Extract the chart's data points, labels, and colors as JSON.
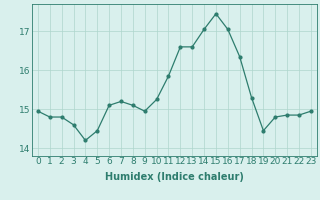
{
  "xlabel": "Humidex (Indice chaleur)",
  "ylabel": "",
  "x": [
    0,
    1,
    2,
    3,
    4,
    5,
    6,
    7,
    8,
    9,
    10,
    11,
    12,
    13,
    14,
    15,
    16,
    17,
    18,
    19,
    20,
    21,
    22,
    23
  ],
  "y": [
    14.95,
    14.8,
    14.8,
    14.6,
    14.2,
    14.45,
    15.1,
    15.2,
    15.1,
    14.95,
    15.25,
    15.85,
    16.6,
    16.6,
    17.05,
    17.45,
    17.05,
    16.35,
    15.3,
    14.45,
    14.8,
    14.85,
    14.85,
    14.95
  ],
  "line_color": "#2e7d6e",
  "marker": "o",
  "marker_size": 2.0,
  "bg_color": "#d9f0ed",
  "grid_color": "#aed6cc",
  "ylim": [
    13.8,
    17.7
  ],
  "yticks": [
    14,
    15,
    16,
    17
  ],
  "xticks": [
    0,
    1,
    2,
    3,
    4,
    5,
    6,
    7,
    8,
    9,
    10,
    11,
    12,
    13,
    14,
    15,
    16,
    17,
    18,
    19,
    20,
    21,
    22,
    23
  ],
  "label_fontsize": 7,
  "tick_fontsize": 6.5
}
